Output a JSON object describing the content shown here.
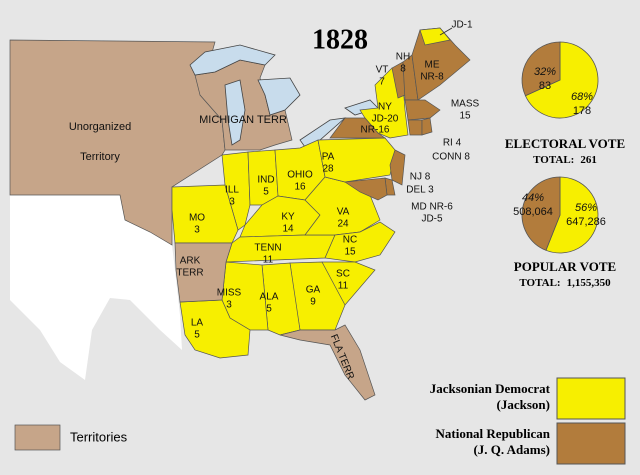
{
  "title": "1828",
  "map_labels": [
    {
      "lines": [
        "Unorganized"
      ]
    },
    {
      "lines": [
        "Territory"
      ]
    },
    {
      "lines": [
        "MICHIGAN TERR"
      ]
    },
    {
      "lines": [
        "VT",
        7
      ]
    },
    {
      "lines": [
        "NH",
        8
      ]
    },
    {
      "lines": [
        "JD-1"
      ]
    },
    {
      "lines": [
        "ME",
        "NR-8"
      ]
    },
    {
      "lines": [
        "NY",
        "JD-20"
      ]
    },
    {
      "lines": [
        "NR-16"
      ]
    },
    {
      "lines": [
        "MASS",
        15
      ]
    },
    {
      "lines": [
        "RI 4"
      ]
    },
    {
      "lines": [
        "CONN 8"
      ]
    },
    {
      "lines": [
        "PA",
        28
      ]
    },
    {
      "lines": [
        "NJ 8"
      ]
    },
    {
      "lines": [
        "DEL 3"
      ]
    },
    {
      "lines": [
        "MD NR-6",
        "JD-5"
      ]
    },
    {
      "lines": [
        "OHIO",
        16
      ]
    },
    {
      "lines": [
        "IND",
        5
      ]
    },
    {
      "lines": [
        "ILL",
        3
      ]
    },
    {
      "lines": [
        "MO",
        3
      ]
    },
    {
      "lines": [
        "KY",
        14
      ]
    },
    {
      "lines": [
        "VA",
        24
      ]
    },
    {
      "lines": [
        "TENN",
        11
      ]
    },
    {
      "lines": [
        "NC",
        15
      ]
    },
    {
      "lines": [
        "ARK",
        "TERR"
      ]
    },
    {
      "lines": [
        "MISS",
        3
      ]
    },
    {
      "lines": [
        "ALA",
        5
      ]
    },
    {
      "lines": [
        "GA",
        9
      ]
    },
    {
      "lines": [
        "SC",
        11
      ]
    },
    {
      "lines": [
        "LA",
        5
      ]
    },
    {
      "lines": [
        "FLA TERR"
      ]
    }
  ],
  "chart_data": [
    {
      "type": "pie",
      "title": "ELECTORAL VOTE",
      "total_label": "TOTAL:",
      "total": 261,
      "values": [
        178,
        83
      ],
      "shares": [
        "68%",
        "32%"
      ],
      "colors": [
        "#f7ef00",
        "#b27c3c"
      ]
    },
    {
      "type": "pie",
      "title": "POPULAR VOTE",
      "total_label": "TOTAL:",
      "total": {
        "value": 1155350,
        "label": "1,155,350"
      },
      "values": [
        647286,
        508064
      ],
      "value_labels": [
        "647,286",
        "508,064"
      ],
      "shares": [
        "56%",
        "44%"
      ],
      "colors": [
        "#f7ef00",
        "#b27c3c"
      ]
    }
  ],
  "legend": {
    "items": [
      {
        "label": "Jacksonian Democrat",
        "sub": "(Jackson)",
        "color": "#f7ef00"
      },
      {
        "label": "National Republican",
        "sub": "(J. Q. Adams)",
        "color": "#b27c3c"
      }
    ],
    "territories": "Territories"
  }
}
